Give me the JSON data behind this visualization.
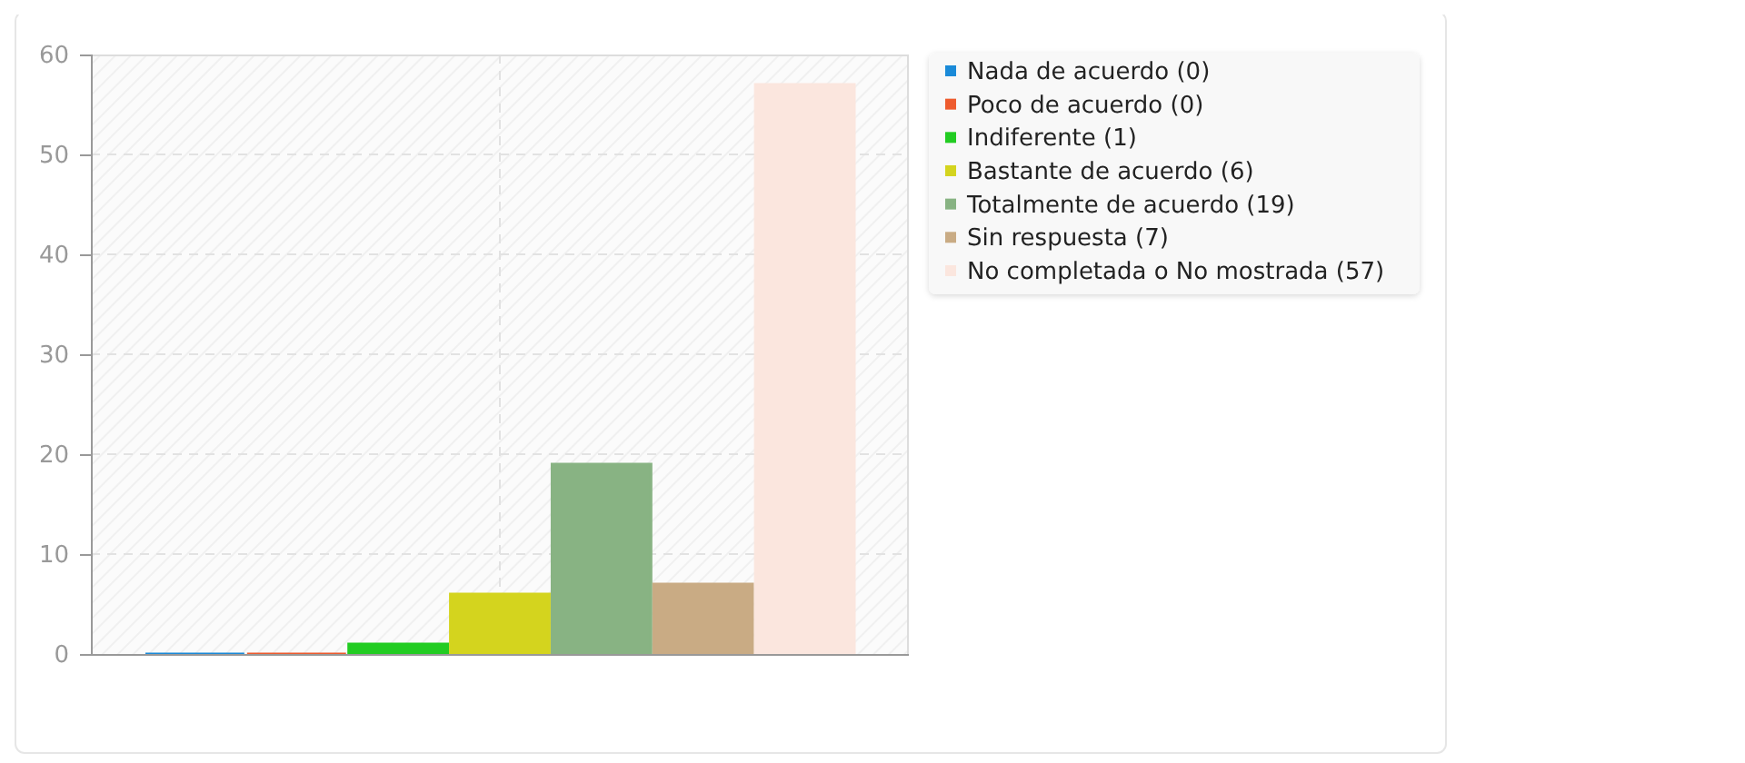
{
  "chart_data": {
    "type": "bar",
    "categories": [
      null
    ],
    "series": [
      {
        "name": "Nada de acuerdo (0)",
        "color": "#1a8ad8",
        "values": [
          0
        ]
      },
      {
        "name": "Poco de acuerdo (0)",
        "color": "#ee5b2e",
        "values": [
          0
        ]
      },
      {
        "name": "Indiferente (1)",
        "color": "#22cc22",
        "values": [
          1
        ]
      },
      {
        "name": "Bastante de acuerdo (6)",
        "color": "#d4d41e",
        "values": [
          6
        ]
      },
      {
        "name": "Totalmente de acuerdo (19)",
        "color": "#88b383",
        "values": [
          19
        ]
      },
      {
        "name": "Sin respuesta (7)",
        "color": "#c9ab84",
        "values": [
          7
        ]
      },
      {
        "name": "No completada o No mostrada (57)",
        "color": "#fbe6de",
        "values": [
          57
        ]
      }
    ],
    "ylim": [
      0,
      60
    ],
    "yticks": [
      0,
      10,
      20,
      30,
      40,
      50,
      60
    ],
    "grid": true,
    "legend": "right"
  }
}
